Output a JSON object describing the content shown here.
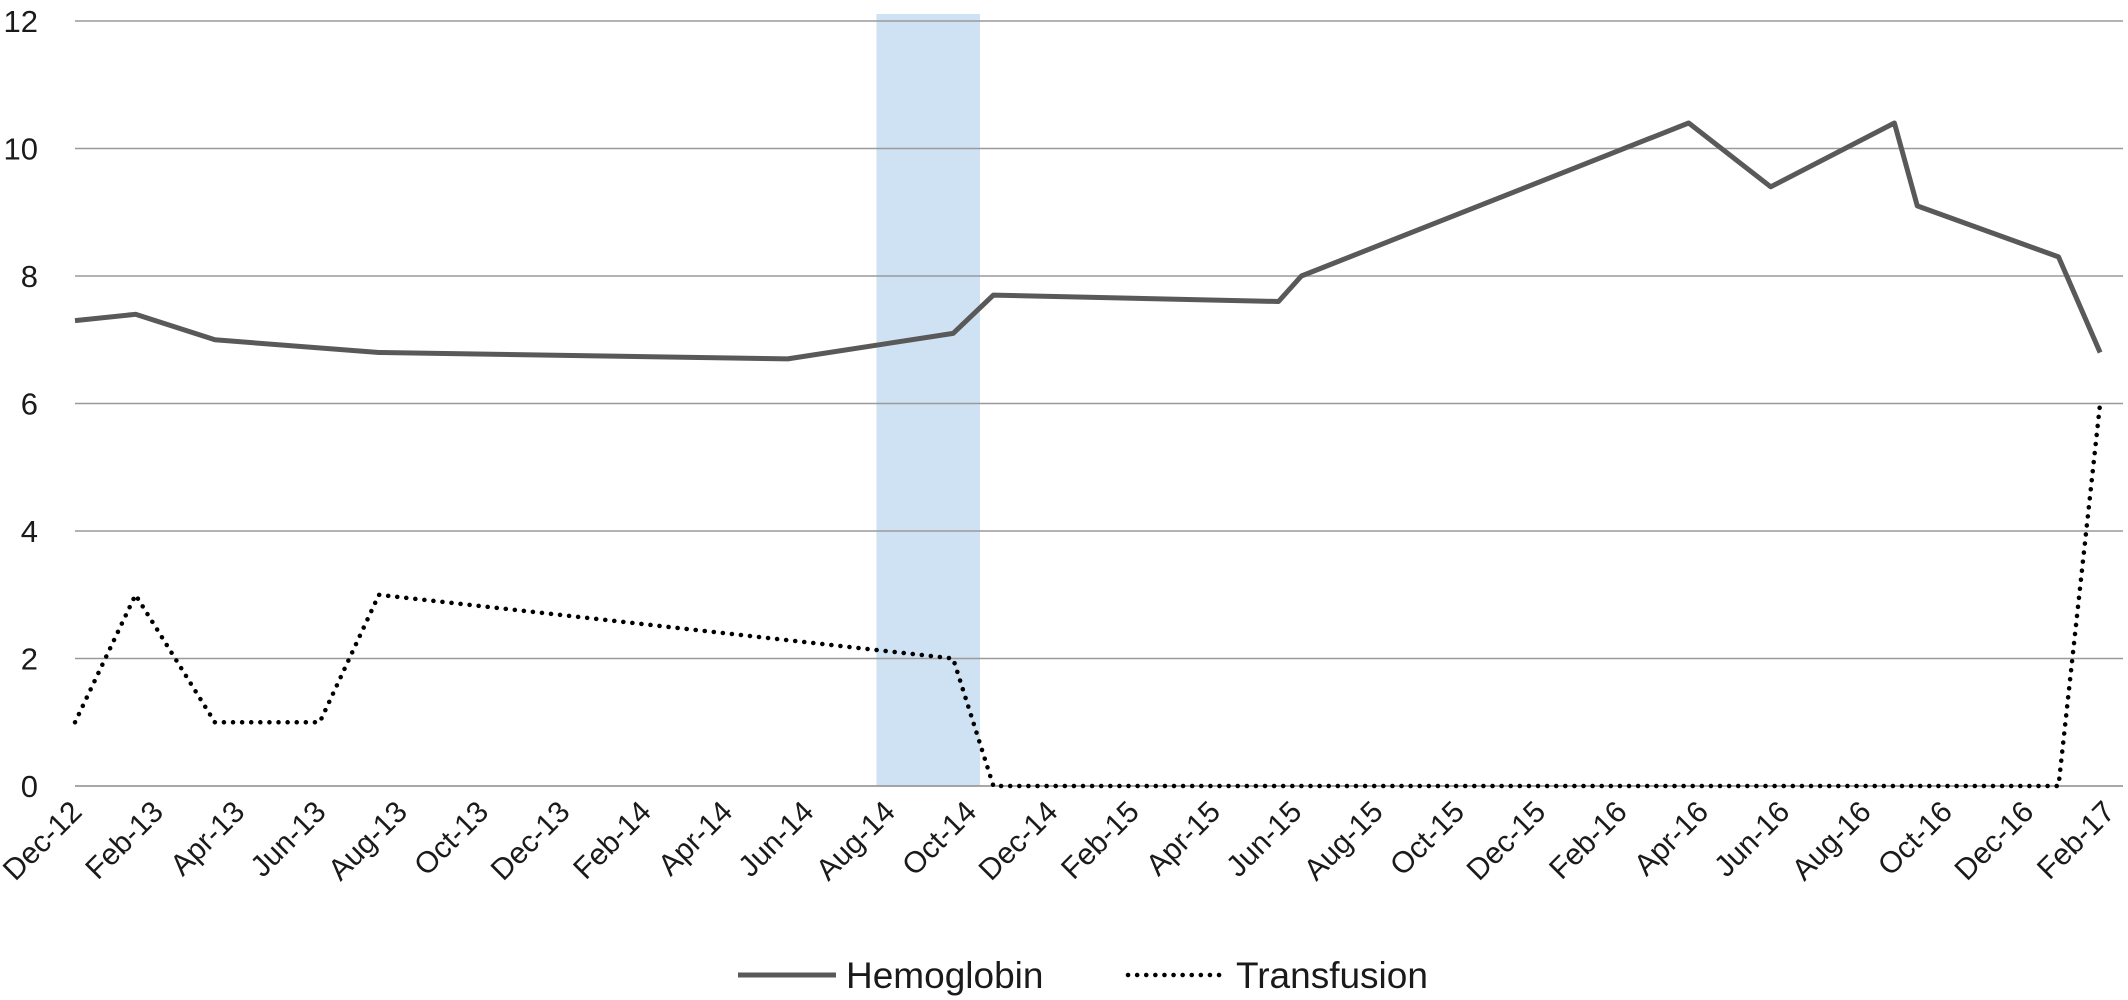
{
  "chart_data": {
    "type": "line",
    "title": "",
    "xlabel": "",
    "ylabel": "",
    "ylim": [
      0,
      12
    ],
    "yticks": [
      0,
      2,
      4,
      6,
      8,
      10,
      12
    ],
    "xlim": [
      "2012-12",
      "2017-02"
    ],
    "xticks": [
      "Dec-12",
      "Feb-13",
      "Apr-13",
      "Jun-13",
      "Aug-13",
      "Oct-13",
      "Dec-13",
      "Feb-14",
      "Apr-14",
      "Jun-14",
      "Aug-14",
      "Oct-14",
      "Dec-14",
      "Feb-15",
      "Apr-15",
      "Jun-15",
      "Aug-15",
      "Oct-15",
      "Dec-15",
      "Feb-16",
      "Apr-16",
      "Jun-16",
      "Aug-16",
      "Oct-16",
      "Dec-16",
      "Feb-17"
    ],
    "grid": true,
    "legend_position": "bottom",
    "shaded_region": {
      "from": "2014-07-20",
      "to": "2014-10-05",
      "color": "#cfe2f3"
    },
    "series": [
      {
        "name": "Hemoglobin",
        "style": "solid",
        "color": "#595959",
        "points": [
          {
            "x": "2012-12-01",
            "y": 7.3
          },
          {
            "x": "2013-01-15",
            "y": 7.4
          },
          {
            "x": "2013-03-15",
            "y": 7.0
          },
          {
            "x": "2013-07-15",
            "y": 6.8
          },
          {
            "x": "2014-05-15",
            "y": 6.7
          },
          {
            "x": "2014-09-15",
            "y": 7.1
          },
          {
            "x": "2014-10-15",
            "y": 7.7
          },
          {
            "x": "2015-05-15",
            "y": 7.6
          },
          {
            "x": "2015-06-01",
            "y": 8.0
          },
          {
            "x": "2016-03-15",
            "y": 10.4
          },
          {
            "x": "2016-05-15",
            "y": 9.4
          },
          {
            "x": "2016-08-15",
            "y": 10.4
          },
          {
            "x": "2016-09-01",
            "y": 9.1
          },
          {
            "x": "2016-12-15",
            "y": 8.3
          },
          {
            "x": "2017-01-15",
            "y": 6.8
          }
        ]
      },
      {
        "name": "Transfusion",
        "style": "dotted",
        "color": "#000000",
        "points": [
          {
            "x": "2012-12-01",
            "y": 1
          },
          {
            "x": "2013-01-15",
            "y": 3
          },
          {
            "x": "2013-03-15",
            "y": 1
          },
          {
            "x": "2013-06-01",
            "y": 1
          },
          {
            "x": "2013-07-15",
            "y": 3
          },
          {
            "x": "2014-09-15",
            "y": 2
          },
          {
            "x": "2014-10-15",
            "y": 0
          },
          {
            "x": "2016-12-15",
            "y": 0
          },
          {
            "x": "2017-01-15",
            "y": 6
          }
        ]
      }
    ]
  }
}
